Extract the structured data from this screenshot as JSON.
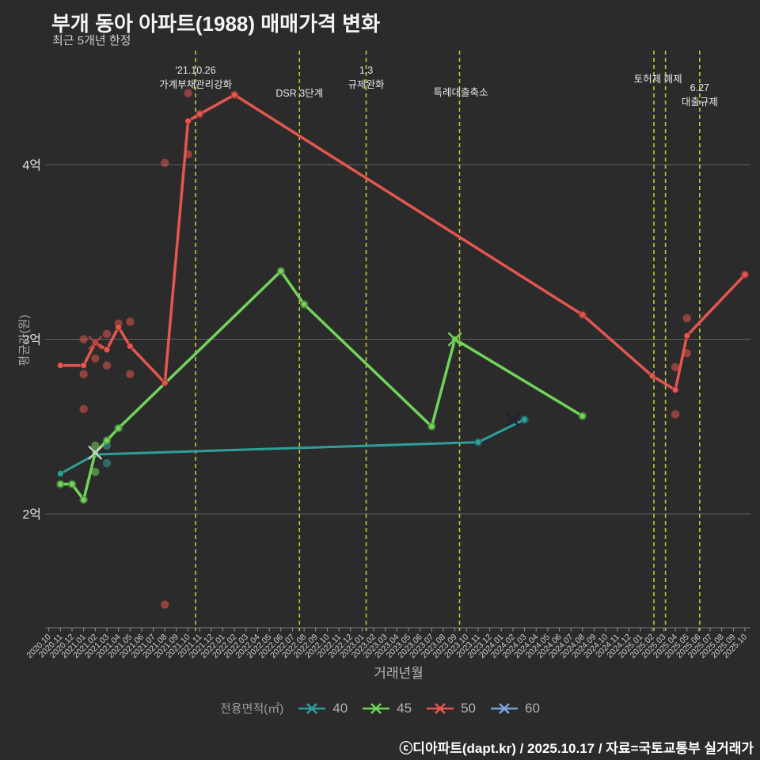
{
  "header": {
    "title": "부개 동아 아파트(1988) 매매가격 변화",
    "subtitle": "최근 5개년 한정"
  },
  "legend": {
    "label": "전용면적(㎡)"
  },
  "footer": {
    "text": "ⓒ디아파트(dapt.kr) / 2025.10.17 / 자료=국토교통부 실거래가"
  },
  "colors": {
    "background": "#2b2b2b",
    "grid": "#909090",
    "axis": "#7a7a7a",
    "tick": "#999999",
    "tick_label": "#cdcdcd",
    "y_tick_label": "#e3e3e3",
    "event_line": "#c2c636",
    "annotation": "#e8e8e8"
  },
  "chart_data": {
    "type": "line",
    "title": "부개 동아 아파트(1988) 매매가격 변화",
    "subtitle": "최근 5개년 한정",
    "xlabel": "거래년월",
    "ylabel": "평균가(원)",
    "unit": "억",
    "ylim": [
      1.35,
      4.65
    ],
    "grid": true,
    "legend_position": "bottom",
    "y_ticks": [
      {
        "label": "2억",
        "value": 2
      },
      {
        "label": "3억",
        "value": 3
      },
      {
        "label": "4억",
        "value": 4
      }
    ],
    "x_categories": [
      "2020.10",
      "2020.11",
      "2020.12",
      "2021.01",
      "2021.02",
      "2021.03",
      "2021.04",
      "2021.05",
      "2021.06",
      "2021.07",
      "2021.08",
      "2021.09",
      "2021.10",
      "2021.11",
      "2021.12",
      "2022.01",
      "2022.02",
      "2022.03",
      "2022.04",
      "2022.05",
      "2022.06",
      "2022.07",
      "2022.08",
      "2022.09",
      "2022.10",
      "2022.11",
      "2022.12",
      "2023.01",
      "2023.02",
      "2023.03",
      "2023.04",
      "2023.05",
      "2023.06",
      "2023.07",
      "2023.08",
      "2023.09",
      "2023.10",
      "2023.11",
      "2023.12",
      "2024.01",
      "2024.02",
      "2024.03",
      "2024.04",
      "2024.05",
      "2024.06",
      "2024.07",
      "2024.08",
      "2024.09",
      "2024.10",
      "2024.11",
      "2024.12",
      "2025.01",
      "2025.02",
      "2025.03",
      "2025.04",
      "2025.05",
      "2025.06",
      "2025.07",
      "2025.08",
      "2025.09",
      "2025.10"
    ],
    "series": [
      {
        "name": "40",
        "color": "#2f9e9b",
        "width": 3,
        "points": [
          [
            "2020.11",
            2.23
          ],
          [
            "2021.02",
            2.34
          ],
          [
            "2023.11",
            2.41
          ],
          [
            "2024.03",
            2.54
          ]
        ]
      },
      {
        "name": "45",
        "color": "#72d35b",
        "width": 3.5,
        "points": [
          [
            "2020.11",
            2.17
          ],
          [
            "2020.12",
            2.17
          ],
          [
            "2021.01",
            2.08
          ],
          [
            "2021.02",
            2.35
          ],
          [
            "2021.03",
            2.42
          ],
          [
            "2021.04",
            2.49
          ],
          [
            "2022.06",
            3.39
          ],
          [
            "2022.08",
            3.2
          ],
          [
            "2023.07",
            2.5
          ],
          [
            "2023.09",
            3.0
          ],
          [
            "2024.08",
            2.56
          ]
        ]
      },
      {
        "name": "50",
        "color": "#e4564f",
        "width": 3.5,
        "points": [
          [
            "2020.11",
            2.85
          ],
          [
            "2021.01",
            2.85
          ],
          [
            "2021.02",
            2.98
          ],
          [
            "2021.03",
            2.94
          ],
          [
            "2021.04",
            3.07
          ],
          [
            "2021.05",
            2.96
          ],
          [
            "2021.08",
            2.75
          ],
          [
            "2021.10",
            4.25
          ],
          [
            "2021.11",
            4.29
          ],
          [
            "2022.02",
            4.4
          ],
          [
            "2024.08",
            3.14
          ],
          [
            "2025.02",
            2.79
          ],
          [
            "2025.04",
            2.71
          ],
          [
            "2025.05",
            3.02
          ],
          [
            "2025.10",
            3.37
          ]
        ]
      },
      {
        "name": "60",
        "color": "#7aa3dc",
        "width": 3,
        "points": [
          [
            "2024.02",
            2.54
          ]
        ]
      }
    ],
    "scatter": {
      "40": [
        [
          "2021.03",
          2.39
        ],
        [
          "2021.03",
          2.29
        ],
        [
          "2023.11",
          2.41
        ],
        [
          "2024.03",
          2.54
        ]
      ],
      "45": [
        [
          "2020.11",
          2.17
        ],
        [
          "2020.12",
          2.17
        ],
        [
          "2021.01",
          2.08
        ],
        [
          "2021.02",
          2.39
        ],
        [
          "2021.02",
          2.24
        ],
        [
          "2021.03",
          2.42
        ],
        [
          "2021.04",
          2.49
        ],
        [
          "2022.06",
          3.39
        ],
        [
          "2022.08",
          3.2
        ],
        [
          "2023.07",
          2.5
        ],
        [
          "2024.08",
          2.56
        ]
      ],
      "50": [
        [
          "2021.01",
          3.0
        ],
        [
          "2021.01",
          2.8
        ],
        [
          "2021.01",
          2.6
        ],
        [
          "2021.02",
          2.89
        ],
        [
          "2021.03",
          3.03
        ],
        [
          "2021.03",
          2.85
        ],
        [
          "2021.04",
          3.09
        ],
        [
          "2021.05",
          3.1
        ],
        [
          "2021.05",
          2.8
        ],
        [
          "2021.08",
          4.01
        ],
        [
          "2021.08",
          1.48
        ],
        [
          "2021.10",
          4.41
        ],
        [
          "2021.10",
          4.06
        ],
        [
          "2021.11",
          4.29
        ],
        [
          "2022.02",
          4.4
        ],
        [
          "2024.08",
          3.14
        ],
        [
          "2025.04",
          2.84
        ],
        [
          "2025.04",
          2.57
        ],
        [
          "2025.05",
          3.12
        ],
        [
          "2025.05",
          2.92
        ],
        [
          "2025.10",
          3.37
        ]
      ]
    },
    "x_markers": [
      {
        "series": "50",
        "month": "2021.02",
        "value": 2.98,
        "color": "#a8423f"
      },
      {
        "series": "45",
        "month": "2021.02",
        "value": 2.35,
        "color": "#c9d2c0"
      },
      {
        "series": "45",
        "month": "2023.09",
        "value": 3.0,
        "color": "#72d35b"
      },
      {
        "series": "60",
        "month": "2024.02",
        "value": 2.54,
        "color": "#1b2330"
      }
    ],
    "event_vlines_month": [
      12.65,
      21.6,
      27.35,
      35.4,
      52.15,
      53.15,
      56.1
    ],
    "annotations": [
      {
        "text": "'21.10.26",
        "x_month": 12.65,
        "y": 93
      },
      {
        "text": "가계부채관리강화",
        "x_month": 12.65,
        "y": 111
      },
      {
        "text": "DSR 3단계",
        "x_month": 21.6,
        "y": 122
      },
      {
        "text": "1.3",
        "x_month": 27.35,
        "y": 93
      },
      {
        "text": "규제완화",
        "x_month": 27.35,
        "y": 111
      },
      {
        "text": "특례대출축소",
        "x_month": 35.5,
        "y": 121
      },
      {
        "text": "토허제 해제",
        "x_month": 52.5,
        "y": 104
      },
      {
        "text": "6.27",
        "x_month": 56.1,
        "y": 115
      },
      {
        "text": "대출규제",
        "x_month": 56.1,
        "y": 133
      }
    ]
  }
}
